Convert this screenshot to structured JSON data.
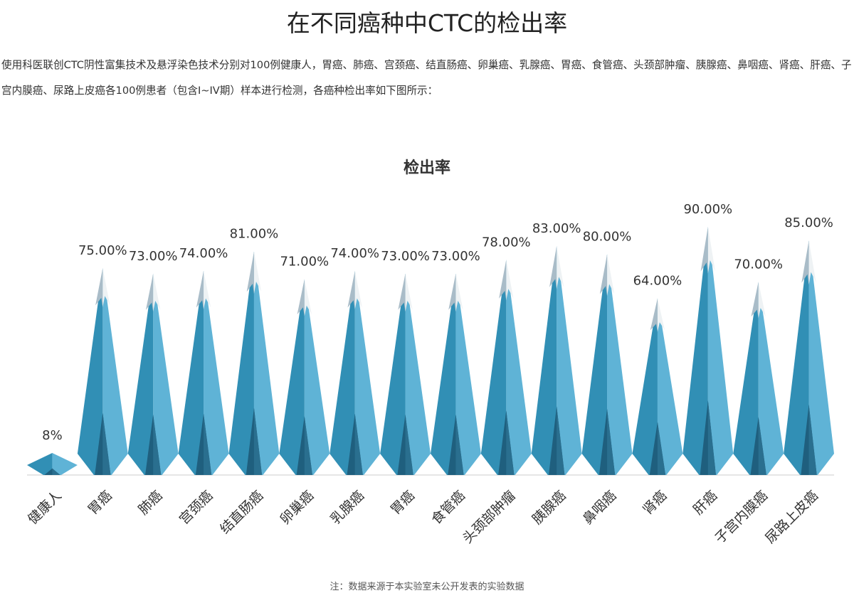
{
  "header": {
    "title": "在不同癌种中CTC的检出率",
    "description": "使用科医联创CTC阴性富集技术及悬浮染色技术分别对100例健康人，胃癌、肺癌、宫颈癌、结直肠癌、卵巢癌、乳腺癌、胃癌、食管癌、头颈部肿瘤、胰腺癌、鼻咽癌、肾癌、肝癌、子宫内膜癌、尿路上皮癌各100例患者（包含I~IV期）样本进行检测，各癌种检出率如下图所示："
  },
  "chart_data": {
    "type": "pictorial-mountain",
    "title": "检出率",
    "categories": [
      "健康人",
      "胃癌",
      "肺癌",
      "宫颈癌",
      "结直肠癌",
      "卵巢癌",
      "乳腺癌",
      "胃癌",
      "食管癌",
      "头颈部肿瘤",
      "胰腺癌",
      "鼻咽癌",
      "肾癌",
      "肝癌",
      "子宫内膜癌",
      "尿路上皮癌"
    ],
    "values": [
      8,
      75,
      73,
      74,
      81,
      71,
      74,
      73,
      73,
      78,
      83,
      80,
      64,
      90,
      70,
      85
    ],
    "value_labels": [
      "8%",
      "75.00%",
      "73.00%",
      "74.00%",
      "81.00%",
      "71.00%",
      "74.00%",
      "73.00%",
      "73.00%",
      "78.00%",
      "83.00%",
      "80.00%",
      "64.00%",
      "90.00%",
      "70.00%",
      "85.00%"
    ],
    "color": "#318fb5"
  },
  "note": "注：数据来源于本实验室未公开发表的实验数据"
}
